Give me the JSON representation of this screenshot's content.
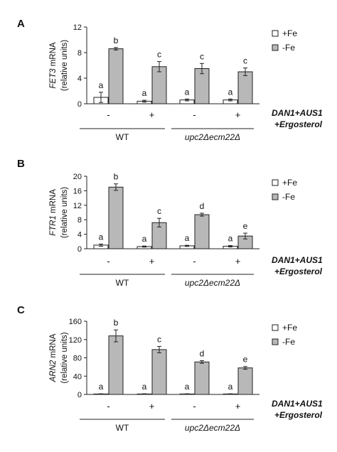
{
  "panels": [
    {
      "letter": "A",
      "ylabel_gene": "FET3",
      "ylabel_rest": " mRNA",
      "ylabel_line2": "(relative units)",
      "yticks": [
        "0",
        "4",
        "8",
        "12"
      ]
    },
    {
      "letter": "B",
      "ylabel_gene": "FTR1",
      "ylabel_rest": " mRNA",
      "ylabel_line2": "(relative units)",
      "yticks": [
        "0",
        "4",
        "8",
        "12",
        "16",
        "20"
      ]
    },
    {
      "letter": "C",
      "ylabel_gene": "ARN2",
      "ylabel_rest": " mRNA",
      "ylabel_line2": "(relative units)",
      "yticks": [
        "0",
        "40",
        "80",
        "120",
        "160"
      ]
    }
  ],
  "legend": {
    "plus_fe": "+Fe",
    "minus_fe": "-Fe"
  },
  "treatment_labels": [
    "-",
    "+",
    "-",
    "+"
  ],
  "condition_line1": "DAN1+AUS1",
  "condition_line2": "+Ergosterol",
  "groups": [
    "WT",
    "upc2Δecm22Δ"
  ],
  "colors": {
    "plus_fe": "#ffffff",
    "minus_fe": "#b8b8b8",
    "stroke": "#222222"
  },
  "chart_data": [
    {
      "type": "bar",
      "title": "",
      "ylabel": "FET3 mRNA (relative units)",
      "ylim": [
        0,
        12
      ],
      "categories": [
        "WT -",
        "WT +",
        "upc2Δecm22Δ -",
        "upc2Δecm22Δ +"
      ],
      "series": [
        {
          "name": "+Fe",
          "values": [
            1.0,
            0.4,
            0.6,
            0.6
          ],
          "errors": [
            0.8,
            0.15,
            0.15,
            0.15
          ],
          "letters": [
            "a",
            "a",
            "a",
            "a"
          ]
        },
        {
          "name": "-Fe",
          "values": [
            8.6,
            5.8,
            5.5,
            5.0
          ],
          "errors": [
            0.2,
            0.8,
            0.8,
            0.6
          ],
          "letters": [
            "b",
            "c",
            "c",
            "c"
          ]
        }
      ]
    },
    {
      "type": "bar",
      "title": "",
      "ylabel": "FTR1 mRNA (relative units)",
      "ylim": [
        0,
        20
      ],
      "categories": [
        "WT -",
        "WT +",
        "upc2Δecm22Δ -",
        "upc2Δecm22Δ +"
      ],
      "series": [
        {
          "name": "+Fe",
          "values": [
            1.0,
            0.6,
            0.8,
            0.7
          ],
          "errors": [
            0.3,
            0.15,
            0.15,
            0.2
          ],
          "letters": [
            "a",
            "a",
            "a",
            "a"
          ]
        },
        {
          "name": "-Fe",
          "values": [
            17.0,
            7.2,
            9.4,
            3.5
          ],
          "errors": [
            0.9,
            1.2,
            0.4,
            0.8
          ],
          "letters": [
            "b",
            "c",
            "d",
            "e"
          ]
        }
      ]
    },
    {
      "type": "bar",
      "title": "",
      "ylabel": "ARN2 mRNA (relative units)",
      "ylim": [
        0,
        160
      ],
      "categories": [
        "WT -",
        "WT +",
        "upc2Δecm22Δ -",
        "upc2Δecm22Δ +"
      ],
      "series": [
        {
          "name": "+Fe",
          "values": [
            1.0,
            1.0,
            1.0,
            1.0
          ],
          "errors": [
            0.5,
            0.5,
            0.5,
            0.5
          ],
          "letters": [
            "a",
            "a",
            "a",
            "a"
          ]
        },
        {
          "name": "-Fe",
          "values": [
            128,
            98,
            71,
            58
          ],
          "errors": [
            13,
            7,
            3,
            3
          ],
          "letters": [
            "b",
            "c",
            "d",
            "e"
          ]
        }
      ]
    }
  ]
}
